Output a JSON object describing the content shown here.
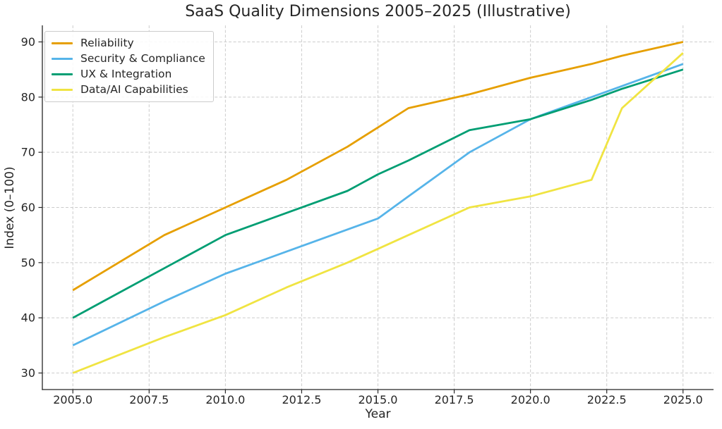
{
  "chart_data": {
    "type": "line",
    "title": "SaaS Quality Dimensions 2005–2025 (Illustrative)",
    "xlabel": "Year",
    "ylabel": "Index (0–100)",
    "xlim": [
      2004,
      2026
    ],
    "ylim": [
      27,
      93
    ],
    "grid": true,
    "legend_position": "upper left",
    "xticks": {
      "values": [
        2005.0,
        2007.5,
        2010.0,
        2012.5,
        2015.0,
        2017.5,
        2020.0,
        2022.5,
        2025.0
      ],
      "labels": [
        "2005.0",
        "2007.5",
        "2010.0",
        "2012.5",
        "2015.0",
        "2017.5",
        "2020.0",
        "2022.5",
        "2025.0"
      ]
    },
    "yticks": {
      "values": [
        30,
        40,
        50,
        60,
        70,
        80,
        90
      ],
      "labels": [
        "30",
        "40",
        "50",
        "60",
        "70",
        "80",
        "90"
      ]
    },
    "x": [
      2005,
      2008,
      2010,
      2012,
      2014,
      2015,
      2016,
      2018,
      2020,
      2022,
      2023,
      2025
    ],
    "series": [
      {
        "name": "Reliability",
        "color": "#E69F00",
        "values": [
          45,
          55,
          60,
          65,
          71,
          74.5,
          78,
          80.5,
          83.5,
          86,
          87.5,
          90
        ]
      },
      {
        "name": "Security & Compliance",
        "color": "#56B4E9",
        "values": [
          35,
          43,
          48,
          52,
          56,
          58,
          62,
          70,
          76,
          80,
          82,
          86
        ]
      },
      {
        "name": "UX & Integration",
        "color": "#009E73",
        "values": [
          40,
          49,
          55,
          59,
          63,
          66,
          68.5,
          74,
          76,
          79.5,
          81.5,
          85
        ]
      },
      {
        "name": "Data/AI Capabilities",
        "color": "#F0E442",
        "values": [
          30,
          36.5,
          40.5,
          45.5,
          50,
          52.5,
          55,
          60,
          62,
          65,
          78,
          88
        ]
      }
    ],
    "colors": {
      "grid": "#cccccc",
      "axis": "#262626",
      "background": "#ffffff"
    }
  }
}
